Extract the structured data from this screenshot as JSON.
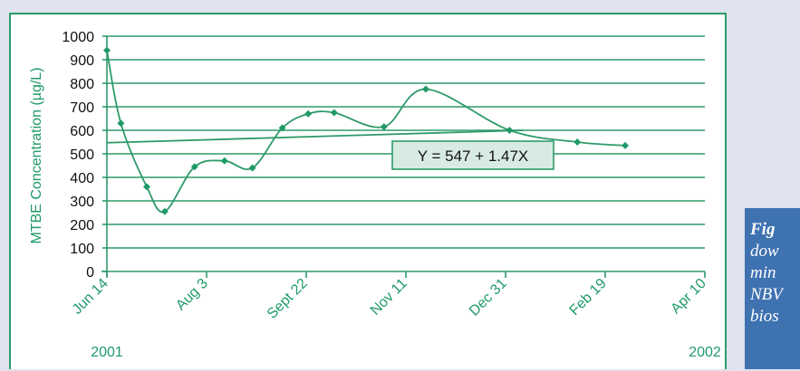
{
  "colors": {
    "accent": "#1f9968",
    "line": "#2e9a6a",
    "axis_text": "#2e9a6a",
    "equation_bg": "#d8ebe2",
    "caption_bg": "#3f72b0",
    "background": "#dfe4ee"
  },
  "chart_data": {
    "type": "line",
    "title": "",
    "xlabel": "",
    "ylabel": "MTBE Concentration (µg/L)",
    "ylim": [
      0,
      1000
    ],
    "yticks": [
      0,
      100,
      200,
      300,
      400,
      500,
      600,
      700,
      800,
      900,
      1000
    ],
    "xlim": [
      "2001-06-14",
      "2002-04-10"
    ],
    "x_tick_labels": [
      "Jun 14",
      "Aug 3",
      "Sept 22",
      "Nov 11",
      "Dec 31",
      "Feb 19",
      "Apr 10"
    ],
    "x_tick_dates": [
      "2001-06-14",
      "2001-08-03",
      "2001-09-22",
      "2001-11-11",
      "2001-12-31",
      "2002-02-19",
      "2002-04-10"
    ],
    "year_labels": [
      {
        "text": "2001",
        "date": "2001-06-14"
      },
      {
        "text": "2002",
        "date": "2002-04-10"
      }
    ],
    "grid": true,
    "series": [
      {
        "points": [
          {
            "x": "2001-06-14",
            "y": 940
          },
          {
            "x": "2001-06-21",
            "y": 630
          },
          {
            "x": "2001-07-04",
            "y": 360
          },
          {
            "x": "2001-07-13",
            "y": 255
          },
          {
            "x": "2001-07-28",
            "y": 445
          },
          {
            "x": "2001-08-12",
            "y": 470
          },
          {
            "x": "2001-08-26",
            "y": 440
          },
          {
            "x": "2001-09-10",
            "y": 610
          },
          {
            "x": "2001-09-23",
            "y": 670
          },
          {
            "x": "2001-10-06",
            "y": 675
          },
          {
            "x": "2001-10-31",
            "y": 615
          },
          {
            "x": "2001-11-21",
            "y": 775
          },
          {
            "x": "2002-01-02",
            "y": 600
          },
          {
            "x": "2002-02-05",
            "y": 550
          },
          {
            "x": "2002-03-01",
            "y": 535
          }
        ]
      }
    ],
    "trendline": {
      "equation": "Y = 547 + 1.47X",
      "start": {
        "x": "2001-06-14",
        "y": 547
      },
      "end": {
        "x": "2002-01-09",
        "y": 600
      }
    }
  },
  "caption": {
    "lines": [
      "Fig",
      "dow",
      "min",
      "NBV",
      "bios"
    ]
  }
}
